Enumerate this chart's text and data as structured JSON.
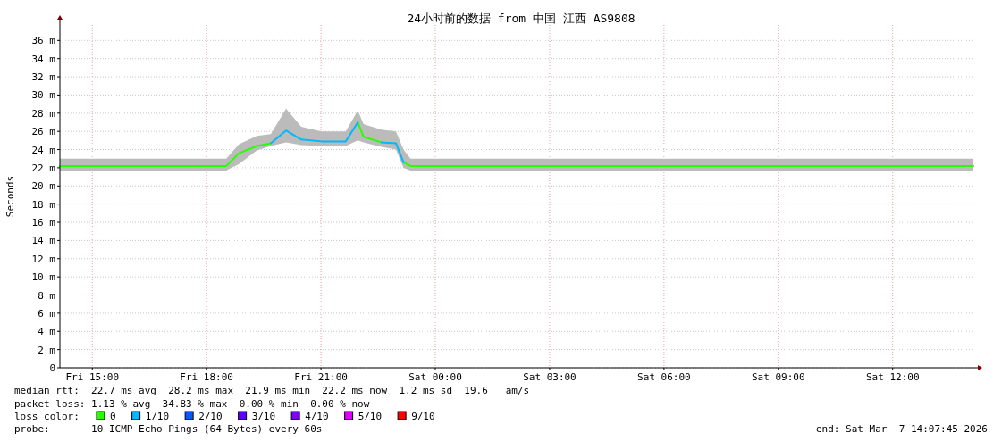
{
  "chart_data": {
    "type": "line",
    "title": "24小时前的数据 from 中国 江西 AS9808",
    "ylabel": "Seconds",
    "legend_title": "loss color:",
    "x": [
      "2026-03-06T14:09",
      "2026-03-06T15:00",
      "2026-03-06T16:00",
      "2026-03-06T17:00",
      "2026-03-06T18:00",
      "2026-03-06T18:31",
      "2026-03-06T18:51",
      "2026-03-06T19:19",
      "2026-03-06T19:41",
      "2026-03-06T20:05",
      "2026-03-06T20:29",
      "2026-03-06T21:01",
      "2026-03-06T21:39",
      "2026-03-06T21:58",
      "2026-03-06T22:07",
      "2026-03-06T22:35",
      "2026-03-06T22:58",
      "2026-03-06T23:10",
      "2026-03-06T23:21",
      "2026-03-07T00:00",
      "2026-03-07T03:00",
      "2026-03-07T06:00",
      "2026-03-07T09:00",
      "2026-03-07T12:00",
      "2026-03-07T14:07"
    ],
    "series": [
      {
        "name": "0",
        "color": "#26ff00",
        "values": [
          22.2,
          22.2,
          22.2,
          22.2,
          22.2,
          22.2,
          23.6,
          24.4,
          24.7,
          null,
          null,
          null,
          null,
          27.0,
          25.4,
          24.8,
          null,
          22.6,
          22.2,
          22.2,
          22.2,
          22.2,
          22.2,
          22.2,
          22.2
        ],
        "lower": [
          21.7,
          21.7,
          21.7,
          21.7,
          21.7,
          21.7,
          22.4,
          23.9,
          24.4,
          24.8,
          24.5,
          24.4,
          24.4,
          25.0,
          24.8,
          24.3,
          24.0,
          22.0,
          21.7,
          21.7,
          21.7,
          21.7,
          21.7,
          21.7,
          21.7
        ],
        "upper": [
          23.0,
          23.0,
          23.0,
          23.0,
          23.0,
          23.0,
          24.6,
          25.5,
          25.7,
          28.5,
          26.5,
          26.0,
          26.0,
          28.3,
          26.8,
          26.2,
          26.0,
          24.0,
          23.0,
          23.0,
          23.0,
          23.0,
          23.0,
          23.0,
          23.0
        ]
      },
      {
        "name": "1/10",
        "color": "#00b8ff",
        "values": [
          null,
          null,
          null,
          null,
          null,
          null,
          null,
          null,
          24.7,
          26.1,
          25.1,
          24.9,
          24.9,
          27.0,
          null,
          24.8,
          24.7,
          22.6,
          null,
          null,
          null,
          null,
          null,
          null,
          null
        ]
      },
      {
        "name": "2/10",
        "color": "#0059ff",
        "values": [
          null,
          null,
          null,
          null,
          null,
          null,
          null,
          null,
          null,
          null,
          null,
          null,
          null,
          null,
          null,
          null,
          null,
          null,
          null,
          null,
          null,
          null,
          null,
          null,
          null
        ]
      },
      {
        "name": "3/10",
        "color": "#5e00ff",
        "values": [
          null,
          null,
          null,
          null,
          null,
          null,
          null,
          null,
          null,
          null,
          null,
          null,
          null,
          null,
          null,
          null,
          null,
          null,
          null,
          null,
          null,
          null,
          null,
          null,
          null
        ]
      },
      {
        "name": "4/10",
        "color": "#7e00ff",
        "values": [
          null,
          null,
          null,
          null,
          null,
          null,
          null,
          null,
          null,
          null,
          null,
          null,
          null,
          null,
          null,
          null,
          null,
          null,
          null,
          null,
          null,
          null,
          null,
          null,
          null
        ]
      },
      {
        "name": "5/10",
        "color": "#dd00ff",
        "values": [
          null,
          null,
          null,
          null,
          null,
          null,
          null,
          null,
          null,
          null,
          null,
          null,
          null,
          null,
          null,
          null,
          null,
          null,
          null,
          null,
          null,
          null,
          null,
          null,
          null
        ]
      },
      {
        "name": "9/10",
        "color": "#ff0000",
        "values": [
          null,
          null,
          null,
          null,
          null,
          null,
          null,
          null,
          null,
          null,
          null,
          null,
          null,
          null,
          null,
          null,
          null,
          null,
          null,
          null,
          null,
          null,
          null,
          null,
          null
        ]
      }
    ],
    "xlim": [
      "2026-03-06T14:09",
      "2026-03-07T14:07"
    ],
    "xticks": [
      {
        "value": "2026-03-06T15:00",
        "label": "Fri 15:00"
      },
      {
        "value": "2026-03-06T18:00",
        "label": "Fri 18:00"
      },
      {
        "value": "2026-03-06T21:00",
        "label": "Fri 21:00"
      },
      {
        "value": "2026-03-07T00:00",
        "label": "Sat 00:00"
      },
      {
        "value": "2026-03-07T03:00",
        "label": "Sat 03:00"
      },
      {
        "value": "2026-03-07T06:00",
        "label": "Sat 06:00"
      },
      {
        "value": "2026-03-07T09:00",
        "label": "Sat 09:00"
      },
      {
        "value": "2026-03-07T12:00",
        "label": "Sat 12:00"
      }
    ],
    "ylim": [
      0,
      37.7
    ],
    "yticks": [
      0,
      {
        "value": 2,
        "label": "2 m"
      },
      {
        "value": 4,
        "label": "4 m"
      },
      {
        "value": 6,
        "label": "6 m"
      },
      {
        "value": 8,
        "label": "8 m"
      },
      {
        "value": 10,
        "label": "10 m"
      },
      {
        "value": 12,
        "label": "12 m"
      },
      {
        "value": 14,
        "label": "14 m"
      },
      {
        "value": 16,
        "label": "16 m"
      },
      {
        "value": 18,
        "label": "18 m"
      },
      {
        "value": 20,
        "label": "20 m"
      },
      {
        "value": 22,
        "label": "22 m"
      },
      {
        "value": 24,
        "label": "24 m"
      },
      {
        "value": 26,
        "label": "26 m"
      },
      {
        "value": 28,
        "label": "28 m"
      },
      {
        "value": 30,
        "label": "30 m"
      },
      {
        "value": 32,
        "label": "32 m"
      },
      {
        "value": 34,
        "label": "34 m"
      },
      {
        "value": 36,
        "label": "36 m"
      }
    ],
    "grid": true,
    "legend": "bottom",
    "line_style": "solid",
    "annotations": [
      "median rtt:  22.7 ms avg  28.2 ms max  21.9 ms min  22.2 ms now  1.2 ms sd  19.6   am/s",
      "packet loss: 1.13 % avg  34.83 % max  0.00 % min  0.00 % now",
      "probe:       10 ICMP Echo Pings (64 Bytes) every 60s",
      "end: Sat Mar  7 14:07:45 2026"
    ]
  }
}
